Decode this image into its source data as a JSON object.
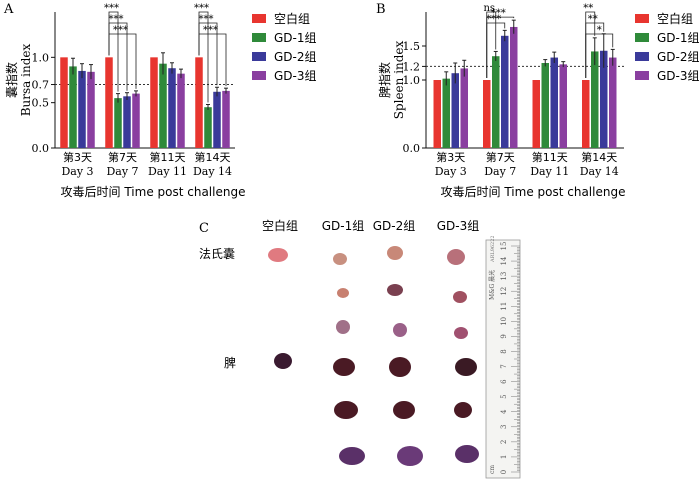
{
  "panels": {
    "A": "A",
    "B": "B",
    "C": "C"
  },
  "colors": {
    "blank": "#e8352f",
    "gd1": "#2f8a3a",
    "gd2": "#3a3a9a",
    "gd3": "#8a3fa0",
    "axis": "#111111"
  },
  "chart_data": [
    {
      "type": "bar",
      "ylabel_cn": "囊指数",
      "ylabel_en": "Bursa index",
      "xlabel": "攻毒后时间 Time post challenge",
      "categories_cn": [
        "第3天",
        "第7天",
        "第11天",
        "第14天"
      ],
      "categories_en": [
        "Day 3",
        "Day 7",
        "Day 11",
        "Day 14"
      ],
      "ylim": [
        0,
        1.5
      ],
      "yticks": [
        "0.0",
        "0.5",
        "0.7",
        "1.0"
      ],
      "ytick_values": [
        0,
        0.5,
        0.7,
        1.0
      ],
      "reference_line": 0.7,
      "legend_position": "right",
      "series": [
        {
          "name": "空白组",
          "values": [
            1.0,
            1.0,
            1.0,
            1.0
          ],
          "errors": [
            0,
            0,
            0,
            0
          ]
        },
        {
          "name": "GD-1组",
          "values": [
            0.9,
            0.55,
            0.93,
            0.45
          ],
          "errors": [
            0.09,
            0.05,
            0.12,
            0.03
          ]
        },
        {
          "name": "GD-2组",
          "values": [
            0.85,
            0.57,
            0.88,
            0.62
          ],
          "errors": [
            0.08,
            0.04,
            0.06,
            0.05
          ]
        },
        {
          "name": "GD-3组",
          "values": [
            0.84,
            0.6,
            0.82,
            0.63
          ],
          "errors": [
            0.08,
            0.03,
            0.05,
            0.03
          ]
        }
      ],
      "significance": [
        {
          "day_index": 1,
          "labels": [
            "***",
            "***",
            "***"
          ]
        },
        {
          "day_index": 3,
          "labels": [
            "***",
            "***",
            "***"
          ]
        }
      ]
    },
    {
      "type": "bar",
      "ylabel_cn": "脾指数",
      "ylabel_en": "Spleen index",
      "xlabel": "攻毒后时间 Time post challenge",
      "categories_cn": [
        "第3天",
        "第7天",
        "第11天",
        "第14天"
      ],
      "categories_en": [
        "Day 3",
        "Day 7",
        "Day 11",
        "Day 14"
      ],
      "ylim": [
        0,
        2.0
      ],
      "yticks": [
        "0.0",
        "1.0",
        "1.2",
        "1.5"
      ],
      "ytick_values": [
        0,
        1.0,
        1.2,
        1.5
      ],
      "reference_line": 1.2,
      "legend_position": "right",
      "series": [
        {
          "name": "空白组",
          "values": [
            1.0,
            1.0,
            1.0,
            1.0
          ],
          "errors": [
            0,
            0,
            0,
            0
          ]
        },
        {
          "name": "GD-1组",
          "values": [
            1.02,
            1.35,
            1.25,
            1.42
          ],
          "errors": [
            0.1,
            0.07,
            0.05,
            0.2
          ]
        },
        {
          "name": "GD-2组",
          "values": [
            1.1,
            1.65,
            1.33,
            1.43
          ],
          "errors": [
            0.15,
            0.08,
            0.08,
            0.25
          ]
        },
        {
          "name": "GD-3组",
          "values": [
            1.17,
            1.78,
            1.23,
            1.33
          ],
          "errors": [
            0.12,
            0.1,
            0.04,
            0.12
          ]
        }
      ],
      "significance": [
        {
          "day_index": 1,
          "labels": [
            "ns",
            "***",
            "***"
          ]
        },
        {
          "day_index": 3,
          "labels": [
            "**",
            "**",
            "*"
          ]
        }
      ]
    }
  ],
  "photo": {
    "column_headers": [
      "空白组",
      "GD-1组",
      "GD-2组",
      "GD-3组"
    ],
    "row_labels": [
      "法氏囊",
      "脾"
    ],
    "ruler_numbers": [
      "15",
      "14",
      "13",
      "12",
      "11",
      "10",
      "9",
      "8",
      "7",
      "6",
      "5",
      "4",
      "3",
      "2",
      "1",
      "0"
    ],
    "ruler_brand": "M&G 晨光",
    "ruler_code": "ARL96222",
    "ruler_unit": "cm"
  }
}
